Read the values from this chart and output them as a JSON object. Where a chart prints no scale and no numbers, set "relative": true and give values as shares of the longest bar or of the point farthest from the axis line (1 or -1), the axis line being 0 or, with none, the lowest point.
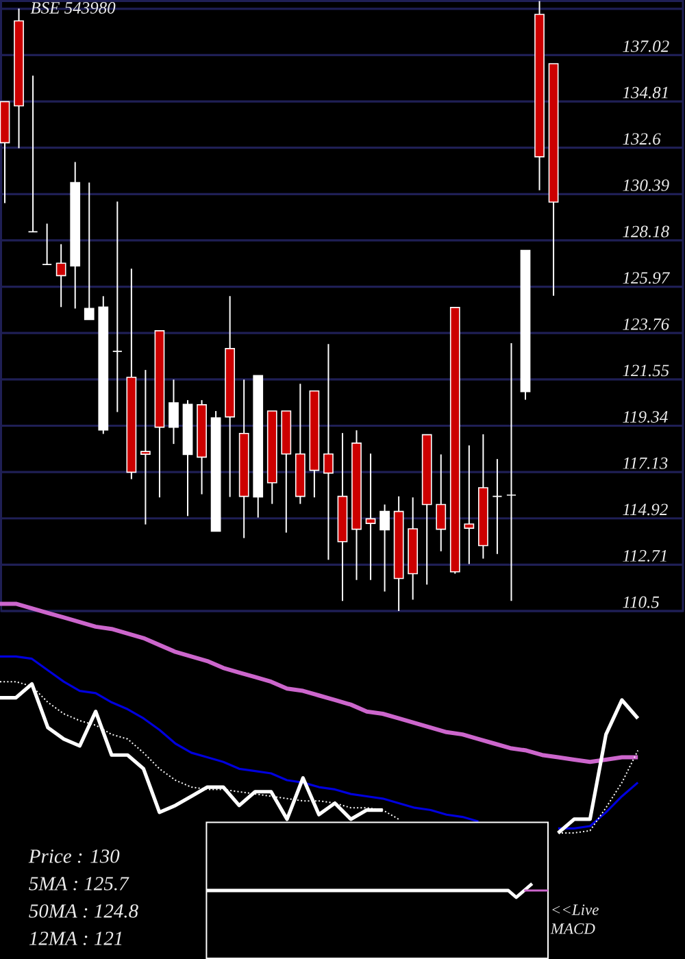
{
  "chart_data": [
    {
      "type": "candlestick",
      "title": "BSE 543980",
      "categories": [
        null,
        null,
        null,
        null,
        null,
        null,
        null,
        null,
        null,
        null,
        null,
        null,
        null,
        null,
        null,
        null,
        null,
        null,
        null,
        null,
        null,
        null,
        null,
        null,
        null,
        null,
        null,
        null,
        null,
        null,
        null,
        null,
        null,
        null,
        null,
        null,
        null,
        null,
        null,
        null
      ],
      "ohlc": [
        [
          134.8,
          134.8,
          129.96,
          132.84
        ],
        [
          138.65,
          139.24,
          132.58,
          134.6
        ],
        [
          128.59,
          136.04,
          128.59,
          128.59
        ],
        [
          127.03,
          128.98,
          127.03,
          127.03
        ],
        [
          127.09,
          128.0,
          125.0,
          126.5
        ],
        [
          126.96,
          131.92,
          124.93,
          130.94
        ],
        [
          124.41,
          130.94,
          124.41,
          124.93
        ],
        [
          119.14,
          125.52,
          118.95,
          125.0
        ],
        [
          122.89,
          130.03,
          119.99,
          122.89
        ],
        [
          121.65,
          126.83,
          116.79,
          117.12
        ],
        [
          118.11,
          122.0,
          114.63,
          117.98
        ],
        [
          123.87,
          123.87,
          115.92,
          119.27
        ],
        [
          119.27,
          121.54,
          118.47,
          120.43
        ],
        [
          117.97,
          120.56,
          115.03,
          120.36
        ],
        [
          120.34,
          120.56,
          116.07,
          117.84
        ],
        [
          114.31,
          120.04,
          114.31,
          119.71
        ],
        [
          123.02,
          125.52,
          115.94,
          119.76
        ],
        [
          118.97,
          121.54,
          113.98,
          115.97
        ],
        [
          115.94,
          121.73,
          114.96,
          121.73
        ],
        [
          120.04,
          120.04,
          115.61,
          116.62
        ],
        [
          120.04,
          120.04,
          114.24,
          117.99
        ],
        [
          117.99,
          121.34,
          115.61,
          115.97
        ],
        [
          121.0,
          121.0,
          115.92,
          117.21
        ],
        [
          117.99,
          123.24,
          112.94,
          117.08
        ],
        [
          115.97,
          118.99,
          110.98,
          113.81
        ],
        [
          118.51,
          119.12,
          111.98,
          114.4
        ],
        [
          114.9,
          118.01,
          111.98,
          114.68
        ],
        [
          114.37,
          115.58,
          111.43,
          115.25
        ],
        [
          115.25,
          115.97,
          110.5,
          112.05
        ],
        [
          114.42,
          115.92,
          111.04,
          112.28
        ],
        [
          118.91,
          118.91,
          111.76,
          115.58
        ],
        [
          115.58,
          117.97,
          113.35,
          114.4
        ],
        [
          124.98,
          124.98,
          112.28,
          112.37
        ],
        [
          114.65,
          118.4,
          112.74,
          114.45
        ],
        [
          116.38,
          118.93,
          113.0,
          113.62
        ],
        [
          115.97,
          117.75,
          113.22,
          115.97
        ],
        [
          116.03,
          123.28,
          110.98,
          116.03
        ],
        [
          120.97,
          127.7,
          120.58,
          127.7
        ],
        [
          138.96,
          139.6,
          130.57,
          132.17
        ],
        [
          136.61,
          136.61,
          125.54,
          130.01
        ]
      ],
      "colors": [
        "#cc0000",
        "#cc0000",
        "#ffffff",
        "#ffffff",
        "#cc0000",
        "#ffffff",
        "#ffffff",
        "#ffffff",
        "#ffffff",
        "#cc0000",
        "#cc0000",
        "#cc0000",
        "#ffffff",
        "#ffffff",
        "#cc0000",
        "#ffffff",
        "#cc0000",
        "#cc0000",
        "#ffffff",
        "#cc0000",
        "#cc0000",
        "#cc0000",
        "#cc0000",
        "#cc0000",
        "#cc0000",
        "#cc0000",
        "#cc0000",
        "#ffffff",
        "#cc0000",
        "#cc0000",
        "#cc0000",
        "#cc0000",
        "#cc0000",
        "#cc0000",
        "#cc0000",
        "#ffffff",
        "#ffffff",
        "#ffffff",
        "#cc0000",
        "#cc0000"
      ],
      "ylim": [
        110.5,
        139.6
      ],
      "yticks": [
        110.5,
        112.71,
        114.92,
        117.13,
        119.34,
        121.55,
        123.76,
        125.97,
        128.18,
        130.39,
        132.6,
        134.81,
        137.02,
        {
          "value": 139.23,
          "label": null
        }
      ],
      "grid": "y",
      "tick_labels": "y"
    },
    {
      "type": "line",
      "relative": true,
      "categories": [
        null,
        null,
        null,
        null,
        null,
        null,
        null,
        null,
        null,
        null,
        null,
        null,
        null,
        null,
        null,
        null,
        null,
        null,
        null,
        null,
        null,
        null,
        null,
        null,
        null,
        null,
        null,
        null,
        null,
        null,
        null,
        null,
        null,
        null,
        null,
        null,
        null,
        null,
        null,
        null,
        null
      ],
      "series": [
        {
          "color": "#cc66cc",
          "line_style": "solid",
          "values": [
            1,
            1,
            0.98,
            0.96,
            0.94,
            0.92,
            0.9,
            0.89,
            0.87,
            0.85,
            0.82,
            0.79,
            0.77,
            0.75,
            0.72,
            0.7,
            0.68,
            0.66,
            0.63,
            0.62,
            0.6,
            0.58,
            0.56,
            0.53,
            0.52,
            0.5,
            0.48,
            0.46,
            0.44,
            0.43,
            0.41,
            0.39,
            0.37,
            0.36,
            0.34,
            0.33,
            0.32,
            0.31,
            0.32,
            0.33,
            0.33
          ]
        },
        {
          "color": "#0000dd",
          "line_style": "solid",
          "values": [
            0.77,
            0.77,
            0.76,
            0.71,
            0.66,
            0.62,
            0.61,
            0.57,
            0.54,
            0.5,
            0.45,
            0.39,
            0.35,
            0.33,
            0.31,
            0.28,
            0.27,
            0.26,
            0.23,
            0.22,
            0.2,
            0.19,
            0.17,
            0.16,
            0.15,
            0.13,
            0.11,
            0.1,
            0.08,
            0.07,
            0.05,
            null,
            null,
            null,
            null,
            0.02,
            0.02,
            0.03,
            0.09,
            0.16,
            0.22
          ]
        },
        {
          "color": "#ffffff",
          "line_style": "dotted",
          "values": [
            0.66,
            0.66,
            0.64,
            0.57,
            0.52,
            0.49,
            0.47,
            0.43,
            0.41,
            0.35,
            0.28,
            0.23,
            0.2,
            0.19,
            0.19,
            0.18,
            0.17,
            0.16,
            0.15,
            0.14,
            0.14,
            0.13,
            0.11,
            0.11,
            0.1,
            0.06,
            null,
            null,
            null,
            null,
            null,
            null,
            null,
            null,
            null,
            0,
            0,
            0.01,
            0.11,
            0.22,
            0.36
          ]
        },
        {
          "color": "#ffffff",
          "line_style": "solid",
          "values": [
            0.59,
            0.59,
            0.65,
            0.46,
            0.41,
            0.38,
            0.53,
            0.34,
            0.34,
            0.28,
            0.09,
            0.12,
            0.16,
            0.2,
            0.2,
            0.12,
            0.18,
            0.18,
            0.06,
            0.24,
            0.08,
            0.13,
            0.06,
            0.1,
            0.1,
            null,
            null,
            null,
            null,
            null,
            null,
            null,
            null,
            null,
            null,
            0,
            0.06,
            0.06,
            0.43,
            0.58,
            0.5
          ]
        }
      ],
      "annotations": [
        "Price : 130",
        "5MA : 125.7",
        "50MA : 124.8",
        "12MA : 121"
      ]
    },
    {
      "type": "line",
      "relative": true,
      "categories": [
        null,
        null,
        null,
        null,
        null,
        null,
        null,
        null,
        null,
        null,
        null,
        null,
        null,
        null,
        null,
        null,
        null,
        null,
        null,
        null,
        null,
        null,
        null,
        null,
        null,
        null,
        null,
        null,
        null,
        null,
        null,
        null,
        null,
        null,
        null,
        null,
        null,
        null,
        null,
        null,
        null,
        null,
        null,
        null
      ],
      "series": [
        {
          "color": "#ffffff",
          "line_style": "solid",
          "values": [
            0.5,
            0.5,
            0.5,
            0.5,
            0.5,
            0.5,
            0.5,
            0.5,
            0.5,
            0.5,
            0.5,
            0.5,
            0.5,
            0.5,
            0.5,
            0.5,
            0.5,
            0.5,
            0.5,
            0.5,
            0.5,
            0.5,
            0.5,
            0.5,
            0.5,
            0.5,
            0.5,
            0.5,
            0.5,
            0.5,
            0.5,
            0.5,
            0.5,
            0.5,
            0.5,
            0.5,
            0.5,
            0.5,
            0.5,
            0,
            0.5,
            1,
            null,
            null
          ]
        },
        {
          "color": "#cc66cc",
          "line_style": "solid",
          "values": [
            null,
            null,
            null,
            null,
            null,
            null,
            null,
            null,
            null,
            null,
            null,
            null,
            null,
            null,
            null,
            null,
            null,
            null,
            null,
            null,
            null,
            null,
            null,
            null,
            null,
            null,
            null,
            null,
            null,
            null,
            null,
            null,
            null,
            null,
            null,
            null,
            null,
            null,
            null,
            null,
            0.5,
            0.5,
            0.5,
            0.5
          ]
        }
      ],
      "annotations": [
        "<<Live MACD"
      ]
    }
  ]
}
